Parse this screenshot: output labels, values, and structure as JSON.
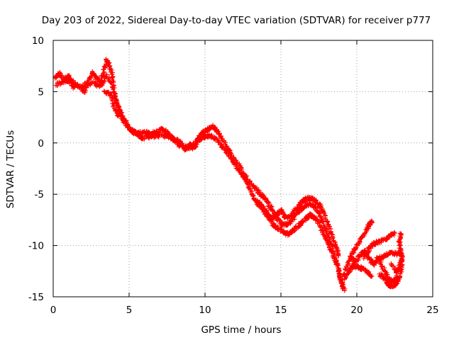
{
  "chart_data": {
    "type": "scatter",
    "title": "Day 203 of 2022, Sidereal Day-to-day VTEC variation (SDTVAR) for receiver p777",
    "xlabel": "GPS time / hours",
    "ylabel": "SDTVAR / TECUs",
    "xlim": [
      0,
      25
    ],
    "ylim": [
      -15,
      10
    ],
    "xticks": [
      0,
      5,
      10,
      15,
      20,
      25
    ],
    "yticks": [
      -15,
      -10,
      -5,
      0,
      5,
      10
    ],
    "xtick_labels": [
      "0",
      "5",
      "10",
      "15",
      "20",
      "25"
    ],
    "ytick_labels": [
      "-15",
      "-10",
      "-5",
      "0",
      "5",
      "10"
    ],
    "grid": true,
    "marker": "+",
    "color": "#ff0000",
    "series": [
      {
        "name": "SDTVAR",
        "segments": [
          [
            [
              0.1,
              6.4
            ],
            [
              0.4,
              6.8
            ],
            [
              0.7,
              6.2
            ],
            [
              1.0,
              6.5
            ],
            [
              1.3,
              5.9
            ],
            [
              1.6,
              5.6
            ],
            [
              1.9,
              5.3
            ],
            [
              2.1,
              4.9
            ]
          ],
          [
            [
              0.2,
              5.7
            ],
            [
              0.6,
              6.0
            ],
            [
              1.0,
              6.1
            ],
            [
              1.4,
              5.4
            ]
          ],
          [
            [
              1.9,
              5.4
            ],
            [
              2.3,
              6.1
            ],
            [
              2.6,
              6.8
            ],
            [
              2.8,
              6.4
            ],
            [
              3.1,
              5.9
            ],
            [
              3.3,
              6.8
            ],
            [
              3.5,
              8.1
            ],
            [
              3.7,
              7.6
            ],
            [
              3.9,
              6.4
            ],
            [
              4.1,
              4.3
            ],
            [
              4.4,
              3.1
            ],
            [
              4.7,
              2.2
            ],
            [
              5.0,
              1.5
            ],
            [
              5.3,
              1.1
            ],
            [
              5.6,
              0.9
            ]
          ],
          [
            [
              2.1,
              5.4
            ],
            [
              2.6,
              5.9
            ],
            [
              3.1,
              5.5
            ],
            [
              3.5,
              6.6
            ],
            [
              3.9,
              5.6
            ],
            [
              4.2,
              3.9
            ],
            [
              4.5,
              2.6
            ],
            [
              4.8,
              1.7
            ],
            [
              5.2,
              1.2
            ],
            [
              5.6,
              0.7
            ],
            [
              5.9,
              0.4
            ]
          ],
          [
            [
              3.4,
              5.0
            ],
            [
              3.8,
              4.7
            ],
            [
              4.0,
              3.6
            ],
            [
              4.3,
              2.6
            ]
          ],
          [
            [
              5.6,
              0.9
            ],
            [
              6.0,
              1.1
            ],
            [
              6.4,
              0.9
            ],
            [
              6.8,
              1.1
            ],
            [
              7.2,
              1.3
            ],
            [
              7.5,
              1.0
            ],
            [
              7.8,
              0.6
            ],
            [
              8.0,
              0.3
            ],
            [
              8.3,
              0.2
            ],
            [
              8.6,
              -0.4
            ],
            [
              8.9,
              -0.5
            ],
            [
              9.0,
              -0.2
            ],
            [
              9.2,
              -0.5
            ],
            [
              9.4,
              -0.3
            ],
            [
              9.6,
              0.6
            ],
            [
              9.9,
              1.1
            ],
            [
              10.2,
              1.3
            ],
            [
              10.5,
              1.6
            ],
            [
              10.8,
              1.2
            ],
            [
              11.1,
              0.5
            ],
            [
              11.5,
              -0.6
            ],
            [
              11.9,
              -1.5
            ],
            [
              12.3,
              -2.3
            ],
            [
              12.7,
              -3.3
            ],
            [
              13.1,
              -4.1
            ],
            [
              13.5,
              -4.7
            ],
            [
              13.8,
              -5.2
            ],
            [
              14.1,
              -5.7
            ],
            [
              14.4,
              -6.5
            ],
            [
              14.7,
              -7.3
            ],
            [
              15.0,
              -7.8
            ],
            [
              15.3,
              -8.0
            ],
            [
              15.6,
              -7.8
            ],
            [
              15.9,
              -7.2
            ],
            [
              16.2,
              -6.6
            ],
            [
              16.5,
              -6.2
            ],
            [
              16.8,
              -6.0
            ],
            [
              17.1,
              -6.1
            ],
            [
              17.4,
              -6.6
            ],
            [
              17.7,
              -7.4
            ],
            [
              18.0,
              -8.6
            ],
            [
              18.3,
              -9.8
            ],
            [
              18.6,
              -11.2
            ],
            [
              18.8,
              -12.4
            ],
            [
              19.0,
              -13.6
            ],
            [
              19.2,
              -14.4
            ]
          ],
          [
            [
              5.8,
              0.5
            ],
            [
              6.3,
              0.6
            ],
            [
              6.8,
              0.7
            ],
            [
              7.3,
              0.7
            ],
            [
              7.8,
              0.4
            ],
            [
              8.3,
              -0.2
            ],
            [
              8.7,
              -0.6
            ],
            [
              9.1,
              -0.4
            ],
            [
              9.5,
              0.2
            ],
            [
              9.9,
              0.6
            ],
            [
              10.3,
              0.7
            ],
            [
              10.7,
              0.4
            ],
            [
              11.1,
              -0.2
            ],
            [
              11.5,
              -1.1
            ],
            [
              11.9,
              -1.9
            ],
            [
              12.3,
              -2.8
            ],
            [
              12.7,
              -3.7
            ],
            [
              13.0,
              -4.6
            ],
            [
              13.3,
              -5.5
            ],
            [
              13.6,
              -6.1
            ],
            [
              13.9,
              -6.7
            ],
            [
              14.2,
              -7.3
            ],
            [
              14.5,
              -7.9
            ],
            [
              14.8,
              -8.3
            ],
            [
              15.1,
              -8.6
            ],
            [
              15.4,
              -8.9
            ],
            [
              15.7,
              -8.7
            ],
            [
              16.0,
              -8.3
            ],
            [
              16.3,
              -7.9
            ],
            [
              16.6,
              -7.4
            ],
            [
              16.9,
              -7.0
            ],
            [
              17.2,
              -7.2
            ],
            [
              17.5,
              -7.8
            ],
            [
              17.8,
              -8.8
            ],
            [
              18.1,
              -9.8
            ],
            [
              18.4,
              -10.9
            ],
            [
              18.7,
              -12.0
            ],
            [
              18.9,
              -13.2
            ],
            [
              19.1,
              -14.2
            ]
          ],
          [
            [
              13.5,
              -5.7
            ],
            [
              13.8,
              -6.3
            ],
            [
              14.1,
              -6.9
            ],
            [
              14.4,
              -7.4
            ],
            [
              14.7,
              -7.0
            ],
            [
              15.0,
              -6.6
            ],
            [
              15.3,
              -7.3
            ],
            [
              15.6,
              -7.1
            ],
            [
              15.9,
              -6.6
            ],
            [
              16.2,
              -6.1
            ],
            [
              16.5,
              -5.6
            ],
            [
              16.8,
              -5.4
            ],
            [
              17.1,
              -5.5
            ],
            [
              17.4,
              -5.8
            ],
            [
              17.7,
              -6.4
            ],
            [
              18.0,
              -7.6
            ],
            [
              18.3,
              -8.8
            ],
            [
              18.6,
              -10.0
            ],
            [
              18.8,
              -11.0
            ]
          ],
          [
            [
              19.1,
              -12.9
            ],
            [
              19.4,
              -11.8
            ],
            [
              19.7,
              -10.7
            ],
            [
              20.0,
              -10.1
            ],
            [
              20.3,
              -9.3
            ],
            [
              20.6,
              -8.6
            ],
            [
              20.8,
              -8.0
            ],
            [
              21.0,
              -7.7
            ]
          ],
          [
            [
              19.2,
              -13.2
            ],
            [
              19.5,
              -12.4
            ],
            [
              19.8,
              -11.9
            ],
            [
              20.1,
              -12.1
            ],
            [
              20.4,
              -12.3
            ],
            [
              20.7,
              -12.6
            ],
            [
              21.0,
              -13.0
            ]
          ],
          [
            [
              19.6,
              -11.1
            ],
            [
              19.9,
              -11.6
            ],
            [
              20.2,
              -11.0
            ],
            [
              20.5,
              -10.6
            ],
            [
              20.8,
              -11.3
            ],
            [
              21.1,
              -11.8
            ],
            [
              21.4,
              -11.5
            ]
          ],
          [
            [
              20.5,
              -11.2
            ],
            [
              20.8,
              -10.3
            ],
            [
              21.1,
              -9.8
            ],
            [
              21.5,
              -9.6
            ],
            [
              21.9,
              -9.4
            ],
            [
              22.2,
              -9.0
            ],
            [
              22.5,
              -8.8
            ]
          ],
          [
            [
              21.3,
              -11.2
            ],
            [
              21.7,
              -11.2
            ],
            [
              22.0,
              -10.8
            ],
            [
              22.4,
              -10.8
            ],
            [
              22.7,
              -10.8
            ],
            [
              22.9,
              -10.7
            ]
          ],
          [
            [
              21.5,
              -12.8
            ],
            [
              21.8,
              -13.2
            ],
            [
              22.1,
              -13.8
            ],
            [
              22.4,
              -14.0
            ],
            [
              22.7,
              -13.6
            ],
            [
              22.9,
              -12.6
            ],
            [
              23.0,
              -11.6
            ],
            [
              22.9,
              -10.6
            ],
            [
              22.8,
              -9.6
            ],
            [
              22.9,
              -8.9
            ]
          ],
          [
            [
              21.5,
              -11.6
            ],
            [
              21.8,
              -12.4
            ],
            [
              22.1,
              -13.3
            ],
            [
              22.4,
              -13.6
            ],
            [
              22.7,
              -13.0
            ]
          ],
          [
            [
              22.3,
              -11.8
            ],
            [
              22.6,
              -12.6
            ],
            [
              22.8,
              -12.1
            ],
            [
              23.0,
              -11.0
            ]
          ]
        ]
      }
    ]
  }
}
